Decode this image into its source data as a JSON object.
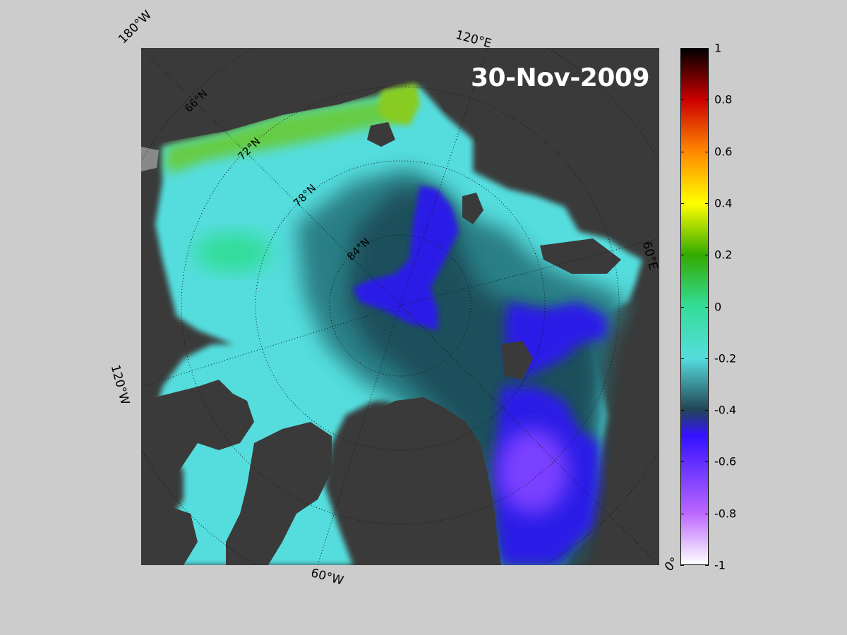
{
  "map": {
    "date": "30-Nov-2009",
    "lon_labels": [
      "180°W",
      "120°E",
      "60°E",
      "0°",
      "60°W",
      "120°W"
    ],
    "lat_labels": [
      "66°N",
      "72°N",
      "78°N",
      "84°N"
    ]
  },
  "colorbar": {
    "min": -1,
    "max": 1,
    "ticks": [
      "1",
      "0.8",
      "0.6",
      "0.4",
      "0.2",
      "0",
      "-0.2",
      "-0.4",
      "-0.6",
      "-0.8",
      "-1"
    ],
    "colors": {
      "p1": "#000000",
      "p08": "#cc0000",
      "p06": "#ff8800",
      "p04": "#ffff00",
      "p02": "#33aa00",
      "p0": "#33dd99",
      "m02": "#55dddd",
      "m04": "#224455",
      "m06": "#3311ff",
      "m08": "#bb66ff",
      "m1": "#ffffff"
    }
  },
  "palette": {
    "land": "#3a3a3a",
    "grey_land": "#888888",
    "ice_cyan": "#55dddd",
    "ice_green": "#33dd99",
    "ice_lime": "#77cc22",
    "ice_teal": "#2a7f85",
    "ice_dark": "#1e4f5c",
    "ice_blue": "#2a1ee6",
    "ice_violet": "#7a40ff"
  }
}
